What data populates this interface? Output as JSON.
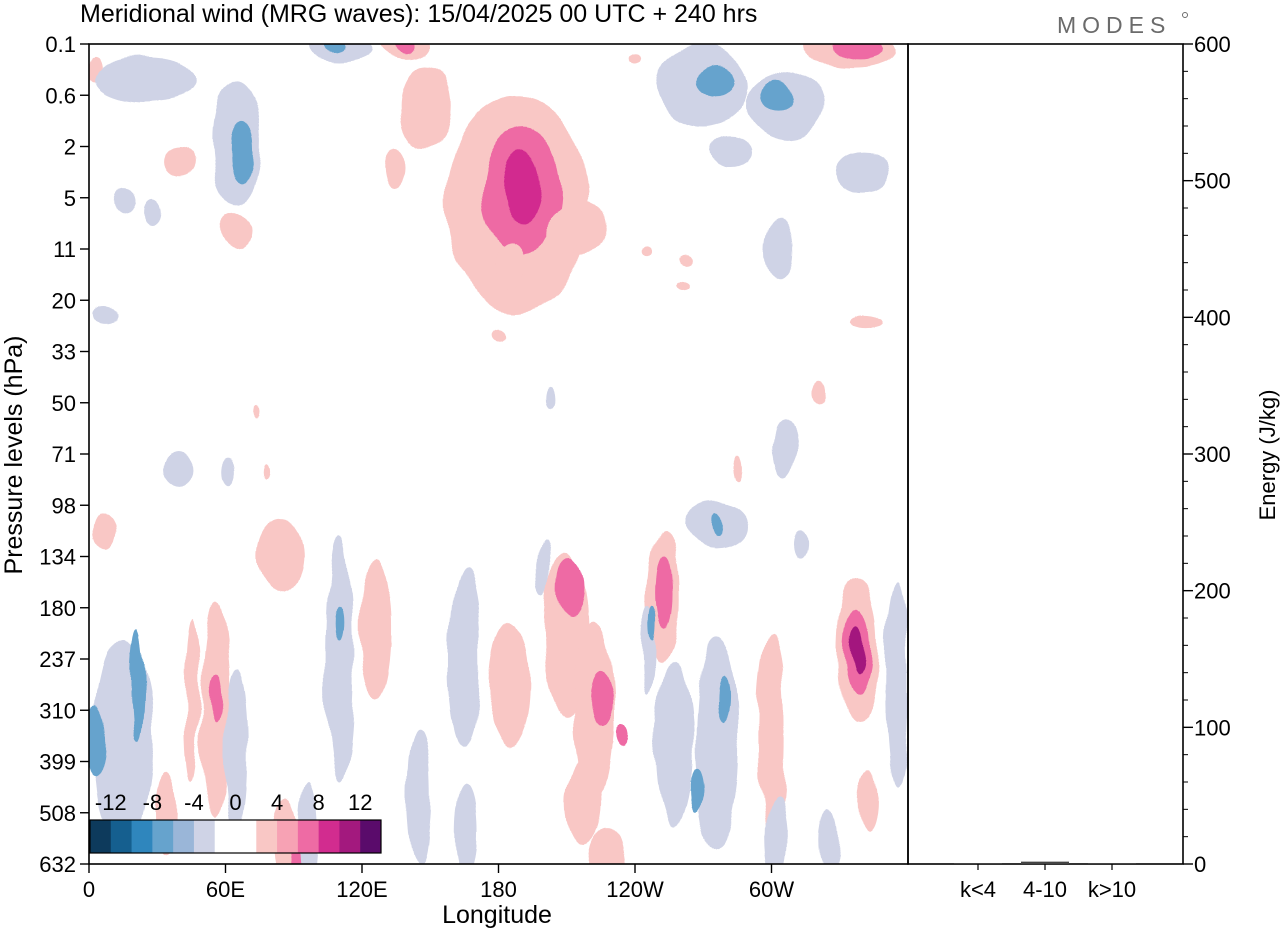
{
  "title": "Meridional wind (MRG waves):  15/04/2025  00 UTC  + 240 hrs",
  "logo": "MODES",
  "chart_data": [
    {
      "type": "heatmap",
      "field": "meridional-wind",
      "xlabel": "Longitude",
      "ylabel": "Pressure levels (hPa)",
      "x_ticks": [
        "0",
        "60E",
        "120E",
        "180",
        "120W",
        "60W"
      ],
      "x_tick_lon": [
        0,
        60,
        120,
        180,
        240,
        300
      ],
      "xlim": [
        0,
        360
      ],
      "y_ticks": [
        "0.1",
        "0.6",
        "2",
        "5",
        "11",
        "20",
        "33",
        "50",
        "71",
        "98",
        "134",
        "180",
        "237",
        "310",
        "399",
        "508",
        "632"
      ],
      "colorbar": {
        "labels": [
          "-12",
          "-8",
          "-4",
          "0",
          "4",
          "8",
          "12"
        ],
        "colors": [
          "#0d3a5c",
          "#155f8f",
          "#2f86bd",
          "#66a3cd",
          "#9ab6d8",
          "#cfd3e6",
          "#ffffff",
          "#ffffff",
          "#f9c7c5",
          "#f7a2b4",
          "#ee6ba4",
          "#d22c8f",
          "#a3197e",
          "#5a0b6b"
        ]
      },
      "blobs": [
        {
          "lon": 188,
          "lev": 3.1,
          "w": 62,
          "h": 4.2,
          "v": 4
        },
        {
          "lon": 190,
          "lev": 2.9,
          "w": 34,
          "h": 2.4,
          "v": 8
        },
        {
          "lon": 190,
          "lev": 2.8,
          "w": 16,
          "h": 1.4,
          "v": 10
        },
        {
          "lon": 148,
          "lev": 1.2,
          "w": 22,
          "h": 1.6,
          "v": 4
        },
        {
          "lon": 135,
          "lev": 2.4,
          "w": 10,
          "h": 0.8,
          "v": 4
        },
        {
          "lon": 215,
          "lev": 3.6,
          "w": 26,
          "h": 1.0,
          "v": 4
        },
        {
          "lon": 185,
          "lev": 4.3,
          "w": 14,
          "h": 0.9,
          "v": 4
        },
        {
          "lon": 140,
          "lev": 0.0,
          "w": 22,
          "h": 0.5,
          "v": 4
        },
        {
          "lon": 140,
          "lev": 0.0,
          "w": 8,
          "h": 0.3,
          "v": 8
        },
        {
          "lon": 240,
          "lev": 0.3,
          "w": 6,
          "h": 0.2,
          "v": 4
        },
        {
          "lon": 335,
          "lev": 0.1,
          "w": 40,
          "h": 0.7,
          "v": 4
        },
        {
          "lon": 338,
          "lev": 0.1,
          "w": 22,
          "h": 0.4,
          "v": 8
        },
        {
          "lon": 40,
          "lev": 2.3,
          "w": 14,
          "h": 0.6,
          "v": 4
        },
        {
          "lon": 64,
          "lev": 3.6,
          "w": 14,
          "h": 0.7,
          "v": 4
        },
        {
          "lon": 2,
          "lev": 0.5,
          "w": 6,
          "h": 0.5,
          "v": 4
        },
        {
          "lon": 25,
          "lev": 0.7,
          "w": 46,
          "h": 0.9,
          "v": -4
        },
        {
          "lon": 65,
          "lev": 1.9,
          "w": 22,
          "h": 2.4,
          "v": -4
        },
        {
          "lon": 68,
          "lev": 2.1,
          "w": 10,
          "h": 1.2,
          "v": -8
        },
        {
          "lon": 110,
          "lev": 0.1,
          "w": 30,
          "h": 0.5,
          "v": -4
        },
        {
          "lon": 108,
          "lev": 0.05,
          "w": 10,
          "h": 0.25,
          "v": -8
        },
        {
          "lon": 270,
          "lev": 0.8,
          "w": 40,
          "h": 1.6,
          "v": -4
        },
        {
          "lon": 275,
          "lev": 0.7,
          "w": 18,
          "h": 0.6,
          "v": -8
        },
        {
          "lon": 306,
          "lev": 1.2,
          "w": 34,
          "h": 1.3,
          "v": -4
        },
        {
          "lon": 303,
          "lev": 1.0,
          "w": 14,
          "h": 0.6,
          "v": -8
        },
        {
          "lon": 282,
          "lev": 2.1,
          "w": 18,
          "h": 0.6,
          "v": -4
        },
        {
          "lon": 340,
          "lev": 2.5,
          "w": 24,
          "h": 0.8,
          "v": -4
        },
        {
          "lon": 15,
          "lev": 3.1,
          "w": 10,
          "h": 0.5,
          "v": -4
        },
        {
          "lon": 28,
          "lev": 3.3,
          "w": 8,
          "h": 0.5,
          "v": -4
        },
        {
          "lon": 304,
          "lev": 4.0,
          "w": 12,
          "h": 1.2,
          "v": -4
        },
        {
          "lon": 7,
          "lev": 5.3,
          "w": 12,
          "h": 0.3,
          "v": -4
        },
        {
          "lon": 215,
          "lev": 4.0,
          "w": 4,
          "h": 0.2,
          "v": 4
        },
        {
          "lon": 245,
          "lev": 4.0,
          "w": 5,
          "h": 0.2,
          "v": 4
        },
        {
          "lon": 262,
          "lev": 4.2,
          "w": 6,
          "h": 0.2,
          "v": 4
        },
        {
          "lon": 262,
          "lev": 4.7,
          "w": 6,
          "h": 0.2,
          "v": 4
        },
        {
          "lon": 180,
          "lev": 5.7,
          "w": 6,
          "h": 0.25,
          "v": 4
        },
        {
          "lon": 343,
          "lev": 5.4,
          "w": 14,
          "h": 0.25,
          "v": 4
        },
        {
          "lon": 321,
          "lev": 6.8,
          "w": 6,
          "h": 0.4,
          "v": 4
        },
        {
          "lon": 73,
          "lev": 7.2,
          "w": 3,
          "h": 0.3,
          "v": 4
        },
        {
          "lon": 203,
          "lev": 6.9,
          "w": 4,
          "h": 0.4,
          "v": -4
        },
        {
          "lon": 77,
          "lev": 8.3,
          "w": 3,
          "h": 0.3,
          "v": 4
        },
        {
          "lon": 285,
          "lev": 8.3,
          "w": 4,
          "h": 0.5,
          "v": 4
        },
        {
          "lon": 40,
          "lev": 8.3,
          "w": 14,
          "h": 0.7,
          "v": -4
        },
        {
          "lon": 62,
          "lev": 8.3,
          "w": 6,
          "h": 0.5,
          "v": -4
        },
        {
          "lon": 306,
          "lev": 7.9,
          "w": 10,
          "h": 1.0,
          "v": -4
        },
        {
          "lon": 7,
          "lev": 9.5,
          "w": 10,
          "h": 0.7,
          "v": 4
        },
        {
          "lon": 84,
          "lev": 10.0,
          "w": 20,
          "h": 1.4,
          "v": 4
        },
        {
          "lon": 126,
          "lev": 11.4,
          "w": 14,
          "h": 2.8,
          "v": 4
        },
        {
          "lon": 110,
          "lev": 12.0,
          "w": 12,
          "h": 4.8,
          "v": -4
        },
        {
          "lon": 110,
          "lev": 11.3,
          "w": 4,
          "h": 0.6,
          "v": -8
        },
        {
          "lon": 165,
          "lev": 12.0,
          "w": 14,
          "h": 3.5,
          "v": -4
        },
        {
          "lon": 185,
          "lev": 12.5,
          "w": 18,
          "h": 2.5,
          "v": 4
        },
        {
          "lon": 210,
          "lev": 11.5,
          "w": 20,
          "h": 3.2,
          "v": 4
        },
        {
          "lon": 212,
          "lev": 10.6,
          "w": 12,
          "h": 1.2,
          "v": 8
        },
        {
          "lon": 222,
          "lev": 13.0,
          "w": 18,
          "h": 3.5,
          "v": 4
        },
        {
          "lon": 225,
          "lev": 12.8,
          "w": 10,
          "h": 1.1,
          "v": 8
        },
        {
          "lon": 218,
          "lev": 14.8,
          "w": 16,
          "h": 1.6,
          "v": 4
        },
        {
          "lon": 235,
          "lev": 13.5,
          "w": 6,
          "h": 0.5,
          "v": 8
        },
        {
          "lon": 252,
          "lev": 10.8,
          "w": 14,
          "h": 2.5,
          "v": 4
        },
        {
          "lon": 253,
          "lev": 10.7,
          "w": 7,
          "h": 1.4,
          "v": 8
        },
        {
          "lon": 275,
          "lev": 9.4,
          "w": 28,
          "h": 0.9,
          "v": -4
        },
        {
          "lon": 275,
          "lev": 9.4,
          "w": 5,
          "h": 0.4,
          "v": -8
        },
        {
          "lon": 257,
          "lev": 13.7,
          "w": 16,
          "h": 3.2,
          "v": -4
        },
        {
          "lon": 276,
          "lev": 13.6,
          "w": 20,
          "h": 4.2,
          "v": -4
        },
        {
          "lon": 279,
          "lev": 12.8,
          "w": 6,
          "h": 0.9,
          "v": -8
        },
        {
          "lon": 267,
          "lev": 14.6,
          "w": 6,
          "h": 0.9,
          "v": -8
        },
        {
          "lon": 246,
          "lev": 11.8,
          "w": 6,
          "h": 1.6,
          "v": -4
        },
        {
          "lon": 248,
          "lev": 11.3,
          "w": 3,
          "h": 0.6,
          "v": -8
        },
        {
          "lon": 200,
          "lev": 10.2,
          "w": 6,
          "h": 1.0,
          "v": -4
        },
        {
          "lon": 300,
          "lev": 13.5,
          "w": 12,
          "h": 4.0,
          "v": 4
        },
        {
          "lon": 302,
          "lev": 15.5,
          "w": 10,
          "h": 1.6,
          "v": -4
        },
        {
          "lon": 325,
          "lev": 15.5,
          "w": 8,
          "h": 1.2,
          "v": -4
        },
        {
          "lon": 338,
          "lev": 11.8,
          "w": 18,
          "h": 2.8,
          "v": 4
        },
        {
          "lon": 338,
          "lev": 11.8,
          "w": 12,
          "h": 1.6,
          "v": 8
        },
        {
          "lon": 338,
          "lev": 11.8,
          "w": 6,
          "h": 0.9,
          "v": 12
        },
        {
          "lon": 355,
          "lev": 12.5,
          "w": 10,
          "h": 4.0,
          "v": -4
        },
        {
          "lon": 343,
          "lev": 14.8,
          "w": 8,
          "h": 1.2,
          "v": 4
        },
        {
          "lon": 312,
          "lev": 9.8,
          "w": 6,
          "h": 0.6,
          "v": -4
        },
        {
          "lon": 15,
          "lev": 13.6,
          "w": 26,
          "h": 4.0,
          "v": -4
        },
        {
          "lon": 3,
          "lev": 13.6,
          "w": 10,
          "h": 1.4,
          "v": -8
        },
        {
          "lon": 21,
          "lev": 12.5,
          "w": 6,
          "h": 2.2,
          "v": -8
        },
        {
          "lon": 46,
          "lev": 12.8,
          "w": 6,
          "h": 3.2,
          "v": 4
        },
        {
          "lon": 56,
          "lev": 13.0,
          "w": 12,
          "h": 4.2,
          "v": 4
        },
        {
          "lon": 56,
          "lev": 12.8,
          "w": 5,
          "h": 0.9,
          "v": 8
        },
        {
          "lon": 65,
          "lev": 13.8,
          "w": 10,
          "h": 3.2,
          "v": -4
        },
        {
          "lon": 34,
          "lev": 15.0,
          "w": 10,
          "h": 1.6,
          "v": 4
        },
        {
          "lon": 87,
          "lev": 15.6,
          "w": 12,
          "h": 1.8,
          "v": 4
        },
        {
          "lon": 92,
          "lev": 15.9,
          "w": 5,
          "h": 0.8,
          "v": 8
        },
        {
          "lon": 97,
          "lev": 15.4,
          "w": 8,
          "h": 2.0,
          "v": -4
        },
        {
          "lon": 145,
          "lev": 14.6,
          "w": 10,
          "h": 2.6,
          "v": -4
        },
        {
          "lon": 166,
          "lev": 15.4,
          "w": 10,
          "h": 1.8,
          "v": -4
        },
        {
          "lon": 228,
          "lev": 16.0,
          "w": 16,
          "h": 1.4,
          "v": 4
        }
      ]
    },
    {
      "type": "bar",
      "ylabel": "Energy (J/kg)",
      "categories": [
        "k<4",
        "4-10",
        "k>10"
      ],
      "values": [
        0,
        1,
        0
      ],
      "ylim": [
        0,
        600
      ],
      "y_ticks": [
        "0",
        "100",
        "200",
        "300",
        "400",
        "500",
        "600"
      ]
    }
  ]
}
